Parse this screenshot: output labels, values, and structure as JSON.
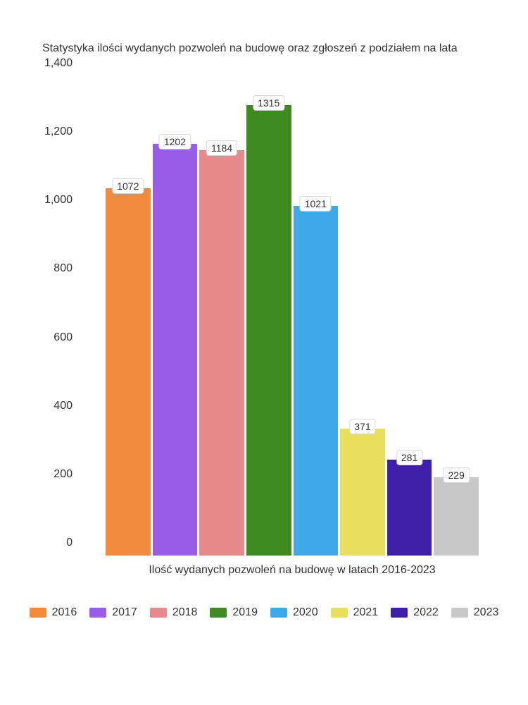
{
  "chart": {
    "type": "bar",
    "title": "Statystyka ilości wydanych pozwoleń na budowę oraz zgłoszeń z podziałem na lata",
    "x_label": "Ilość wydanych pozwoleń na budowę w latach 2016-2023",
    "categories": [
      "2016",
      "2017",
      "2018",
      "2019",
      "2020",
      "2021",
      "2022",
      "2023"
    ],
    "values": [
      1072,
      1202,
      1184,
      1315,
      1021,
      371,
      281,
      229
    ],
    "bar_colors": [
      "#f08a3c",
      "#9a5de8",
      "#e88a8a",
      "#3f8a1f",
      "#3fa8e8",
      "#e8e05a",
      "#3f1fa8",
      "#c8c8c8"
    ],
    "ylim": [
      0,
      1400
    ],
    "ytick_step": 200,
    "ytick_labels": [
      "0",
      "200",
      "400",
      "600",
      "800",
      "1,000",
      "1,200",
      "1,400"
    ],
    "background_color": "#ffffff",
    "title_fontsize": 16,
    "label_fontsize": 16,
    "value_fontsize": 14,
    "text_color": "#333333",
    "value_box_bg": "#ffffff",
    "value_box_border": "#d8d8d8"
  }
}
